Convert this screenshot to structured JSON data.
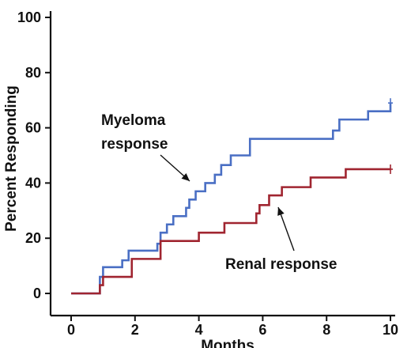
{
  "chart_data": {
    "type": "line",
    "step": true,
    "xlabel": "Months",
    "ylabel": "Percent Responding",
    "xlim": [
      0,
      10
    ],
    "ylim": [
      0,
      100
    ],
    "xticks": [
      0,
      2,
      4,
      6,
      8,
      10
    ],
    "yticks": [
      0,
      20,
      40,
      60,
      80,
      100
    ],
    "grid": false,
    "legend": "none",
    "series": [
      {
        "name": "Myeloma response",
        "color": "#4a6fc4",
        "censor_marker": "+",
        "points": [
          [
            0,
            0
          ],
          [
            0.9,
            6
          ],
          [
            1.0,
            9.5
          ],
          [
            1.6,
            12
          ],
          [
            1.8,
            15.5
          ],
          [
            2.7,
            18
          ],
          [
            2.8,
            22
          ],
          [
            3.0,
            25
          ],
          [
            3.2,
            28
          ],
          [
            3.6,
            31
          ],
          [
            3.7,
            34
          ],
          [
            3.9,
            37
          ],
          [
            4.2,
            40
          ],
          [
            4.5,
            43
          ],
          [
            4.7,
            46.5
          ],
          [
            5.0,
            50
          ],
          [
            5.6,
            56
          ],
          [
            8.2,
            59
          ],
          [
            8.4,
            63
          ],
          [
            9.3,
            66
          ],
          [
            10.0,
            69
          ]
        ]
      },
      {
        "name": "Renal response",
        "color": "#a02530",
        "censor_marker": "+",
        "points": [
          [
            0,
            0
          ],
          [
            0.9,
            3
          ],
          [
            1.0,
            6
          ],
          [
            1.9,
            12.5
          ],
          [
            2.8,
            19
          ],
          [
            4.0,
            22
          ],
          [
            4.8,
            25.5
          ],
          [
            5.8,
            29
          ],
          [
            5.9,
            32
          ],
          [
            6.2,
            35.5
          ],
          [
            6.6,
            38.5
          ],
          [
            7.5,
            42
          ],
          [
            8.6,
            45
          ],
          [
            10.0,
            45
          ]
        ]
      }
    ],
    "annotations": {
      "myeloma_line1": "Myeloma",
      "myeloma_line2": "response",
      "renal": "Renal response"
    }
  }
}
